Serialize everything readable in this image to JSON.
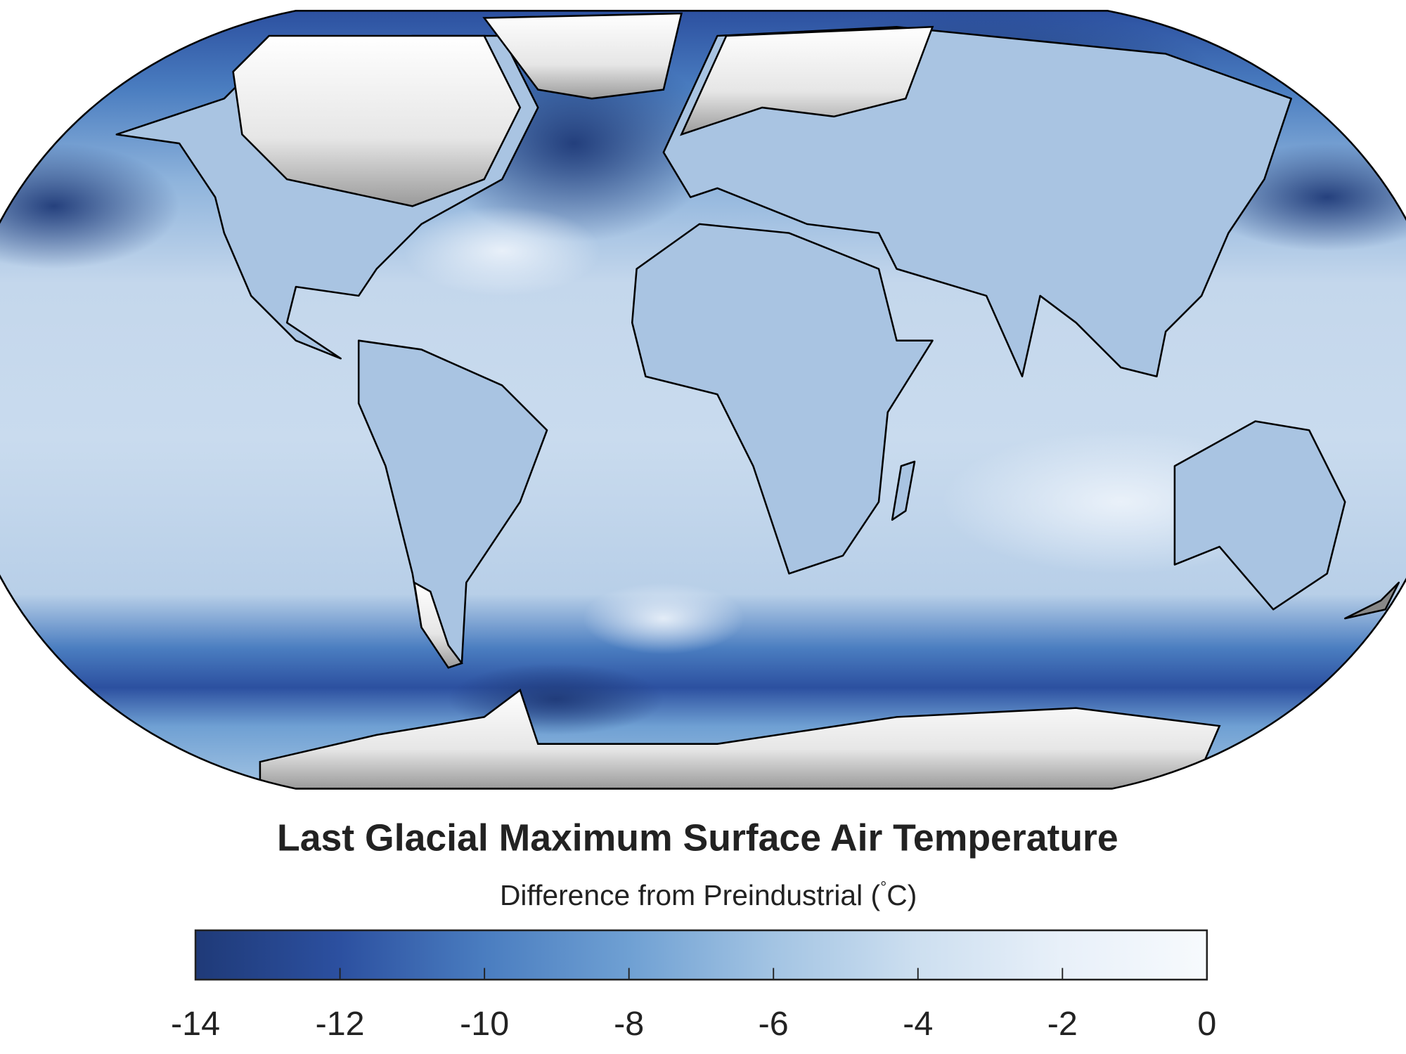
{
  "title": "Last Glacial Maximum Surface Air Temperature",
  "colorbar": {
    "label": "Difference from Preindustrial (",
    "degree": "°",
    "unit_tail": "C)",
    "ticks": [
      "-14",
      "-12",
      "-10",
      "-8",
      "-6",
      "-4",
      "-2",
      "0"
    ]
  },
  "chart_data": {
    "type": "heatmap",
    "title": "Last Glacial Maximum Surface Air Temperature",
    "projection": "Robinson",
    "colorbar_label": "Difference from Preindustrial (°C)",
    "colorbar_range": [
      -14,
      0
    ],
    "colorbar_ticks": [
      -14,
      -12,
      -10,
      -8,
      -6,
      -4,
      -2,
      0
    ],
    "colormap": [
      "#1f3a78",
      "#2c50a0",
      "#4a7dc0",
      "#6fa0d3",
      "#a3c4e3",
      "#cddff0",
      "#e8f0f9",
      "#f7fafd"
    ],
    "ice_sheet_color": "#ffffff",
    "coastline_color": "#000000",
    "legend_placement": "bottom"
  }
}
